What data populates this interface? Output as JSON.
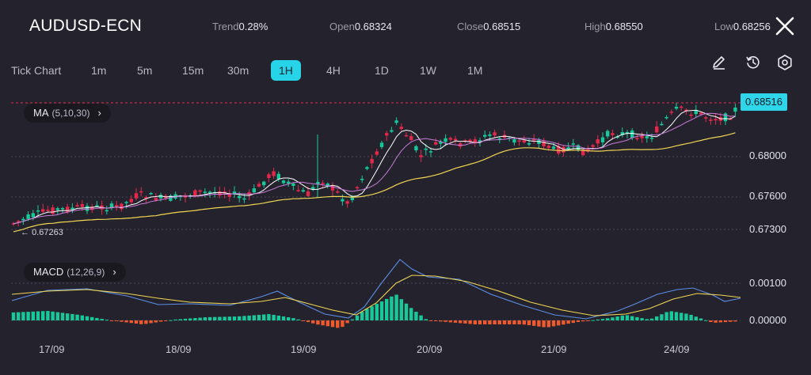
{
  "header": {
    "symbol": "AUDUSD-ECN",
    "trend": {
      "label": "Trend",
      "value": "0.28%"
    },
    "open": {
      "label": "Open",
      "value": "0.68324"
    },
    "close": {
      "label": "Close",
      "value": "0.68515"
    },
    "high": {
      "label": "High",
      "value": "0.68550"
    },
    "low": {
      "label": "Low",
      "value": "0.68256"
    }
  },
  "timeframes": [
    {
      "label": "Tick Chart",
      "active": false
    },
    {
      "label": "1m",
      "active": false
    },
    {
      "label": "5m",
      "active": false
    },
    {
      "label": "15m",
      "active": false
    },
    {
      "label": "30m",
      "active": false
    },
    {
      "label": "1H",
      "active": true
    },
    {
      "label": "4H",
      "active": false
    },
    {
      "label": "1D",
      "active": false
    },
    {
      "label": "1W",
      "active": false
    },
    {
      "label": "1M",
      "active": false
    }
  ],
  "tools": [
    "pencil-icon",
    "history-icon",
    "settings-icon"
  ],
  "indicators": {
    "ma": {
      "name": "MA",
      "params": "(5,10,30)"
    },
    "macd": {
      "name": "MACD",
      "params": "(12,26,9)"
    }
  },
  "current_price": "0.68516",
  "period_low_label": "0.67263",
  "colors": {
    "bull": "#17c99a",
    "bear": "#e5284a",
    "ma5": "#ffffff",
    "ma10": "#c77bd8",
    "ma30": "#f0d653",
    "macd": "#5b8ee6",
    "signal": "#f0d653",
    "accent": "#27d3e6"
  },
  "chart_data": {
    "type": "candlestick",
    "price_axis": {
      "ticks": [
        "0.68000",
        "0.67600",
        "0.67300"
      ],
      "tick_values": [
        0.68,
        0.676,
        0.673
      ]
    },
    "macd_axis": {
      "ticks": [
        "0.00100",
        "0.00000"
      ],
      "tick_values": [
        0.001,
        0.0
      ]
    },
    "x_ticks": [
      "17/09",
      "18/09",
      "19/09",
      "20/09",
      "21/09",
      "24/09"
    ],
    "ma": {
      "periods": [
        5,
        10,
        30
      ]
    },
    "macd": {
      "fast": 12,
      "slow": 26,
      "signal": 9
    }
  }
}
